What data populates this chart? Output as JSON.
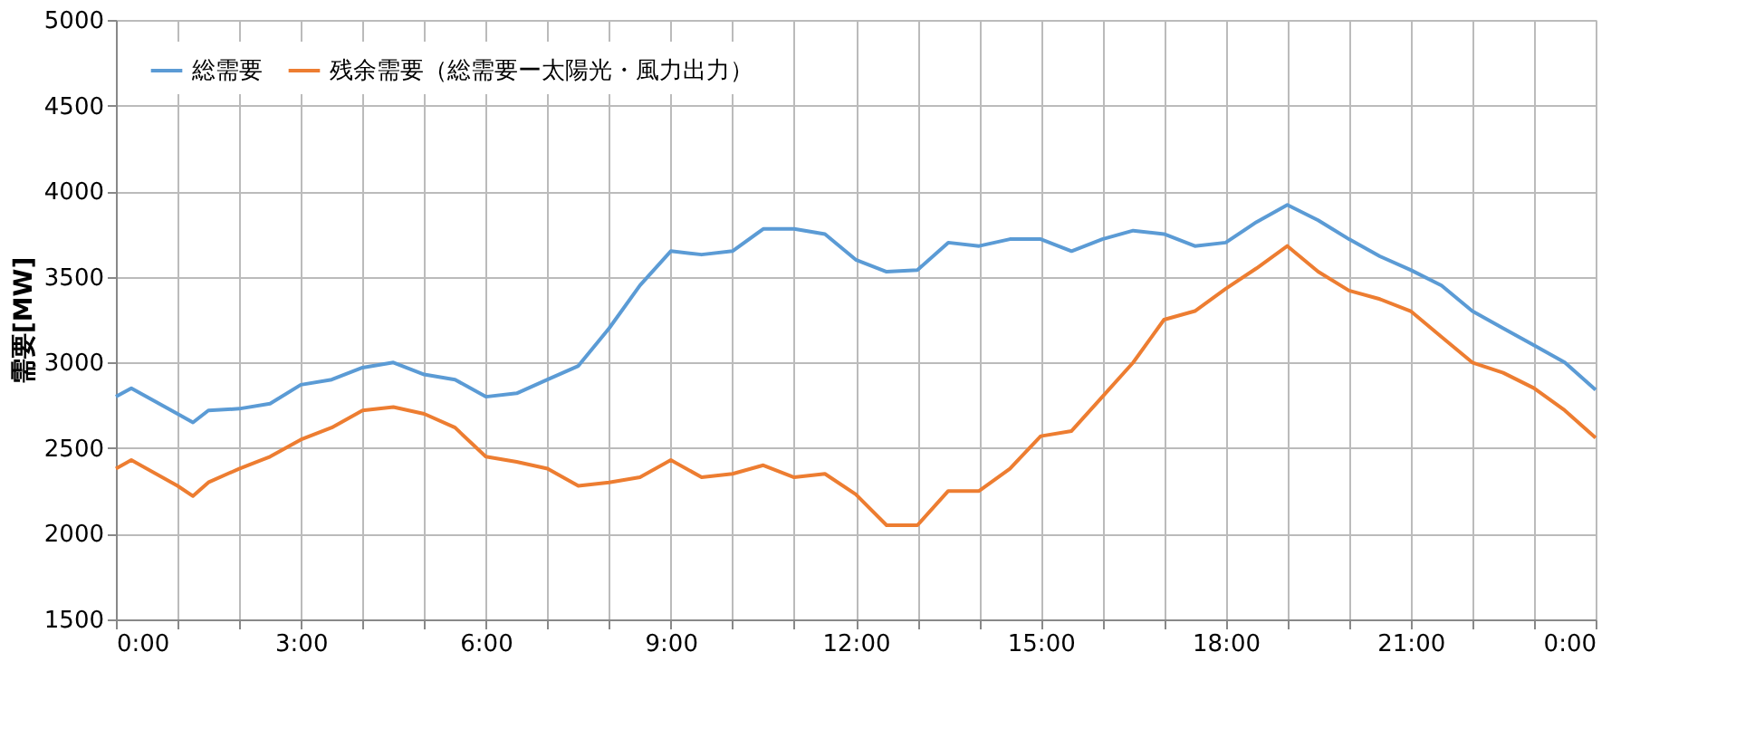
{
  "chart_data": {
    "type": "line",
    "ylabel": "需要[MW]",
    "x": [
      0,
      0.25,
      1,
      1.25,
      1.5,
      2,
      2.5,
      3,
      3.5,
      4,
      4.5,
      5,
      5.5,
      6,
      6.5,
      7,
      7.5,
      8,
      8.5,
      9,
      9.5,
      10,
      10.5,
      11,
      11.5,
      12,
      12.5,
      13,
      13.5,
      14,
      14.5,
      15,
      15.5,
      16,
      16.5,
      17,
      17.5,
      18,
      18.5,
      19,
      19.5,
      20,
      20.5,
      21,
      21.5,
      22,
      22.5,
      23,
      23.5,
      24
    ],
    "series": [
      {
        "name": "総需要",
        "color": "#5b9bd5",
        "values": [
          2800,
          2850,
          2700,
          2650,
          2720,
          2730,
          2760,
          2870,
          2900,
          2970,
          3000,
          2930,
          2900,
          2800,
          2820,
          2900,
          2980,
          3200,
          3450,
          3650,
          3630,
          3650,
          3780,
          3780,
          3750,
          3600,
          3530,
          3540,
          3700,
          3680,
          3720,
          3720,
          3650,
          3720,
          3770,
          3750,
          3680,
          3700,
          3820,
          3920,
          3830,
          3720,
          3620,
          3540,
          3450,
          3300,
          3200,
          3100,
          3000,
          2840
        ]
      },
      {
        "name": "残余需要（総需要ー太陽光・風力出力）",
        "color": "#ed7d31",
        "values": [
          2380,
          2430,
          2280,
          2220,
          2300,
          2380,
          2450,
          2550,
          2620,
          2720,
          2740,
          2700,
          2620,
          2450,
          2420,
          2380,
          2280,
          2300,
          2330,
          2430,
          2330,
          2350,
          2400,
          2330,
          2350,
          2230,
          2050,
          2050,
          2250,
          2250,
          2380,
          2570,
          2600,
          2800,
          3000,
          3250,
          3300,
          3430,
          3550,
          3680,
          3530,
          3420,
          3370,
          3300,
          3150,
          3000,
          2940,
          2850,
          2720,
          2560
        ]
      }
    ],
    "xlim": [
      0,
      24
    ],
    "xticks": [
      {
        "value": 0,
        "label": "0:00"
      },
      {
        "value": 1,
        "label": null
      },
      {
        "value": 2,
        "label": null
      },
      {
        "value": 3,
        "label": "3:00"
      },
      {
        "value": 4,
        "label": null
      },
      {
        "value": 5,
        "label": null
      },
      {
        "value": 6,
        "label": "6:00"
      },
      {
        "value": 7,
        "label": null
      },
      {
        "value": 8,
        "label": null
      },
      {
        "value": 9,
        "label": "9:00"
      },
      {
        "value": 10,
        "label": null
      },
      {
        "value": 11,
        "label": null
      },
      {
        "value": 12,
        "label": "12:00"
      },
      {
        "value": 13,
        "label": null
      },
      {
        "value": 14,
        "label": null
      },
      {
        "value": 15,
        "label": "15:00"
      },
      {
        "value": 16,
        "label": null
      },
      {
        "value": 17,
        "label": null
      },
      {
        "value": 18,
        "label": "18:00"
      },
      {
        "value": 19,
        "label": null
      },
      {
        "value": 20,
        "label": null
      },
      {
        "value": 21,
        "label": "21:00"
      },
      {
        "value": 22,
        "label": null
      },
      {
        "value": 23,
        "label": null
      },
      {
        "value": 24,
        "label": "0:00"
      }
    ],
    "ylim": [
      1500,
      5000
    ],
    "yticks": [
      1500,
      2000,
      2500,
      3000,
      3500,
      4000,
      4500,
      5000
    ],
    "grid": true,
    "legend": "top left",
    "marker": "none",
    "line_style": "solid"
  }
}
